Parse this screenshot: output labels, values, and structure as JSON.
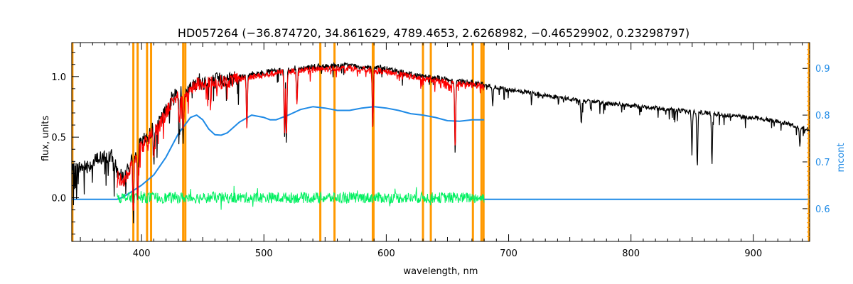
{
  "chart_data": {
    "type": "line",
    "title": "HD057264    (−36.874720, 34.861629, 4789.4653, 2.6268982, −0.46529902, 0.23298797)",
    "xlabel": "wavelength, nm",
    "ylabel": "flux, units",
    "y2label": "mcont",
    "xlim": [
      343,
      946
    ],
    "ylim": [
      -0.36,
      1.28
    ],
    "y2lim": [
      0.53,
      0.955
    ],
    "xticks": [
      400,
      500,
      600,
      700,
      800,
      900
    ],
    "yticks": [
      0.0,
      0.5,
      1.0
    ],
    "y2ticks": [
      0.6,
      0.7,
      0.8,
      0.9
    ],
    "xtick_labels": [
      "400",
      "500",
      "600",
      "700",
      "800",
      "900"
    ],
    "ytick_labels": [
      "0.0",
      "0.5",
      "1.0"
    ],
    "y2tick_labels": [
      "0.6",
      "0.7",
      "0.8",
      "0.9"
    ],
    "grid": false,
    "colors": {
      "observed": "#000000",
      "model": "#FF0000",
      "residual": "#00F060",
      "continuum": "#1E8AE6",
      "line_marker": "#FF9900"
    },
    "line_markers_nm": [
      343.5,
      393.3,
      396.8,
      404.5,
      407.8,
      434.0,
      435.8,
      546.1,
      557.7,
      589.0,
      589.6,
      630.0,
      636.4,
      670.8,
      677.8,
      679.5,
      945.5
    ],
    "series": [
      {
        "key": "observed",
        "x": [
          343,
          350,
          360,
          365,
          370,
          375,
          380,
          385,
          390,
          395,
          400,
          405,
          410,
          415,
          420,
          425,
          430,
          435,
          440,
          445,
          450,
          460,
          470,
          480,
          490,
          500,
          510,
          520,
          530,
          540,
          550,
          560,
          570,
          580,
          590,
          600,
          610,
          620,
          630,
          640,
          650,
          660,
          670,
          680,
          700,
          720,
          740,
          760,
          780,
          800,
          820,
          840,
          860,
          880,
          900,
          920,
          940,
          946
        ],
        "y": [
          0.22,
          0.25,
          0.28,
          0.33,
          0.32,
          0.35,
          0.22,
          0.15,
          0.25,
          0.38,
          0.45,
          0.5,
          0.58,
          0.62,
          0.72,
          0.82,
          0.88,
          0.85,
          0.9,
          0.98,
          0.95,
          0.97,
          0.98,
          1.0,
          1.02,
          1.03,
          1.05,
          1.06,
          1.07,
          1.08,
          1.08,
          1.09,
          1.09,
          1.08,
          1.08,
          1.06,
          1.04,
          1.02,
          1.0,
          0.99,
          0.97,
          0.96,
          0.95,
          0.93,
          0.89,
          0.86,
          0.83,
          0.8,
          0.78,
          0.76,
          0.74,
          0.72,
          0.7,
          0.68,
          0.66,
          0.63,
          0.58,
          0.56
        ]
      },
      {
        "key": "model",
        "x": [
          380,
          385,
          390,
          395,
          400,
          405,
          410,
          415,
          420,
          425,
          430,
          435,
          440,
          445,
          450,
          460,
          470,
          480,
          490,
          500,
          510,
          520,
          530,
          540,
          550,
          560,
          570,
          580,
          590,
          600,
          610,
          620,
          630,
          640,
          650,
          660,
          670,
          680
        ],
        "y": [
          0.18,
          0.12,
          0.22,
          0.35,
          0.42,
          0.48,
          0.55,
          0.6,
          0.7,
          0.8,
          0.85,
          0.82,
          0.88,
          0.95,
          0.93,
          0.95,
          0.96,
          0.98,
          1.0,
          1.01,
          1.03,
          1.04,
          1.05,
          1.06,
          1.06,
          1.07,
          1.07,
          1.06,
          1.05,
          1.04,
          1.02,
          1.0,
          0.98,
          0.97,
          0.95,
          0.94,
          0.93,
          0.92
        ]
      },
      {
        "key": "residual",
        "x": [
          380,
          400,
          420,
          440,
          460,
          480,
          500,
          520,
          540,
          560,
          580,
          600,
          620,
          640,
          660,
          680
        ],
        "y": [
          0.0,
          0.0,
          0.0,
          0.0,
          0.0,
          0.0,
          0.0,
          0.0,
          0.0,
          0.0,
          0.0,
          0.0,
          0.0,
          0.0,
          0.0,
          0.0
        ]
      },
      {
        "key": "continuum",
        "axis": "right",
        "x": [
          343,
          380,
          385,
          390,
          400,
          410,
          420,
          430,
          440,
          445,
          450,
          455,
          460,
          465,
          470,
          480,
          490,
          500,
          505,
          510,
          520,
          530,
          540,
          550,
          560,
          570,
          580,
          590,
          600,
          610,
          620,
          630,
          640,
          650,
          660,
          670,
          680
        ],
        "y": [
          0.62,
          0.62,
          0.625,
          0.633,
          0.65,
          0.672,
          0.71,
          0.76,
          0.795,
          0.8,
          0.79,
          0.77,
          0.758,
          0.757,
          0.762,
          0.785,
          0.8,
          0.795,
          0.79,
          0.79,
          0.8,
          0.812,
          0.818,
          0.815,
          0.81,
          0.81,
          0.815,
          0.818,
          0.815,
          0.81,
          0.803,
          0.8,
          0.795,
          0.788,
          0.787,
          0.79,
          0.79
        ]
      },
      {
        "key": "continuum_ext",
        "axis": "right",
        "x": [
          680,
          700,
          740,
          760,
          780,
          800,
          820,
          860,
          900,
          946
        ],
        "y": [
          0.62,
          0.62,
          0.62,
          0.62,
          0.62,
          0.62,
          0.62,
          0.62,
          0.62,
          0.62
        ]
      }
    ],
    "absorption_lines": [
      {
        "x": 393.3,
        "depth": 0.5
      },
      {
        "x": 396.8,
        "depth": 0.45
      },
      {
        "x": 410.2,
        "depth": 0.25
      },
      {
        "x": 430.8,
        "depth": 0.3
      },
      {
        "x": 434.0,
        "depth": 0.35
      },
      {
        "x": 486.1,
        "depth": 0.45
      },
      {
        "x": 516.9,
        "depth": 0.55
      },
      {
        "x": 518.4,
        "depth": 0.6
      },
      {
        "x": 527.0,
        "depth": 0.3
      },
      {
        "x": 589.0,
        "depth": 0.5
      },
      {
        "x": 656.3,
        "depth": 0.6
      },
      {
        "x": 687.0,
        "depth": 0.15
      },
      {
        "x": 759.4,
        "depth": 0.2
      },
      {
        "x": 849.8,
        "depth": 0.3
      },
      {
        "x": 854.2,
        "depth": 0.45
      },
      {
        "x": 866.2,
        "depth": 0.4
      },
      {
        "x": 938.0,
        "depth": 0.15
      }
    ]
  }
}
